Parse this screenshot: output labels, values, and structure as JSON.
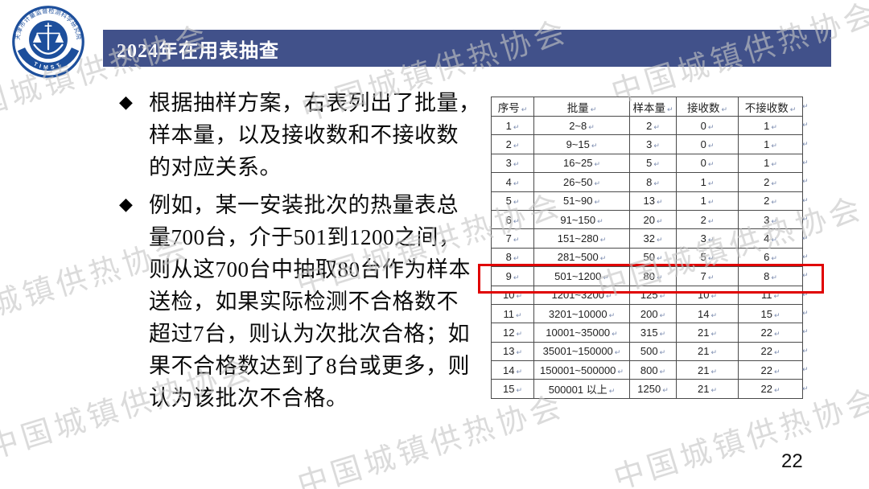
{
  "slide": {
    "title": "2024年在用表抽查",
    "page_number": "22",
    "watermark_text": "中国城镇供热协会",
    "bullet_char": "◆",
    "logo": {
      "ring_text": "天津市计量监督检测科学研究院",
      "acronym": "TIMST"
    },
    "bullets": [
      {
        "lines": [
          "根据抽样方案，右表列出了批量，",
          "样本量，以及接收数和不接收数",
          "的对应关系。"
        ]
      },
      {
        "lines": [
          "例如，某一安装批次的热量表总",
          "量700台，介于501到1200之间，",
          "则从这700台中抽取80台作为样本",
          "送检，如果实际检测不合格数不",
          "超过7台，则认为次批次合格；如",
          "果不合格数达到了8台或更多，则",
          "认为该批次不合格。"
        ]
      }
    ],
    "table": {
      "headers": [
        "序号",
        "批量",
        "样本量",
        "接收数",
        "不接收数"
      ],
      "rows": [
        [
          "1",
          "2~8",
          "2",
          "0",
          "1"
        ],
        [
          "2",
          "9~15",
          "3",
          "0",
          "1"
        ],
        [
          "3",
          "16~25",
          "5",
          "0",
          "1"
        ],
        [
          "4",
          "26~50",
          "8",
          "1",
          "2"
        ],
        [
          "5",
          "51~90",
          "13",
          "1",
          "2"
        ],
        [
          "6",
          "91~150",
          "20",
          "2",
          "3"
        ],
        [
          "7",
          "151~280",
          "32",
          "3",
          "4"
        ],
        [
          "8",
          "281~500",
          "50",
          "5",
          "6"
        ],
        [
          "9",
          "501~1200",
          "80",
          "7",
          "8"
        ],
        [
          "10",
          "1201~3200",
          "125",
          "10",
          "11"
        ],
        [
          "11",
          "3201~10000",
          "200",
          "14",
          "15"
        ],
        [
          "12",
          "10001~35000",
          "315",
          "21",
          "22"
        ],
        [
          "13",
          "35001~150000",
          "500",
          "21",
          "22"
        ],
        [
          "14",
          "150001~500000",
          "800",
          "21",
          "22"
        ],
        [
          "15",
          "500001 以上",
          "1250",
          "21",
          "22"
        ]
      ],
      "highlighted_row": "9",
      "pilcrow_mark": "↵"
    },
    "colors": {
      "title_bar": "#41518A",
      "logo_blue": "#1d4f9c",
      "highlight_red": "#E00000"
    }
  }
}
